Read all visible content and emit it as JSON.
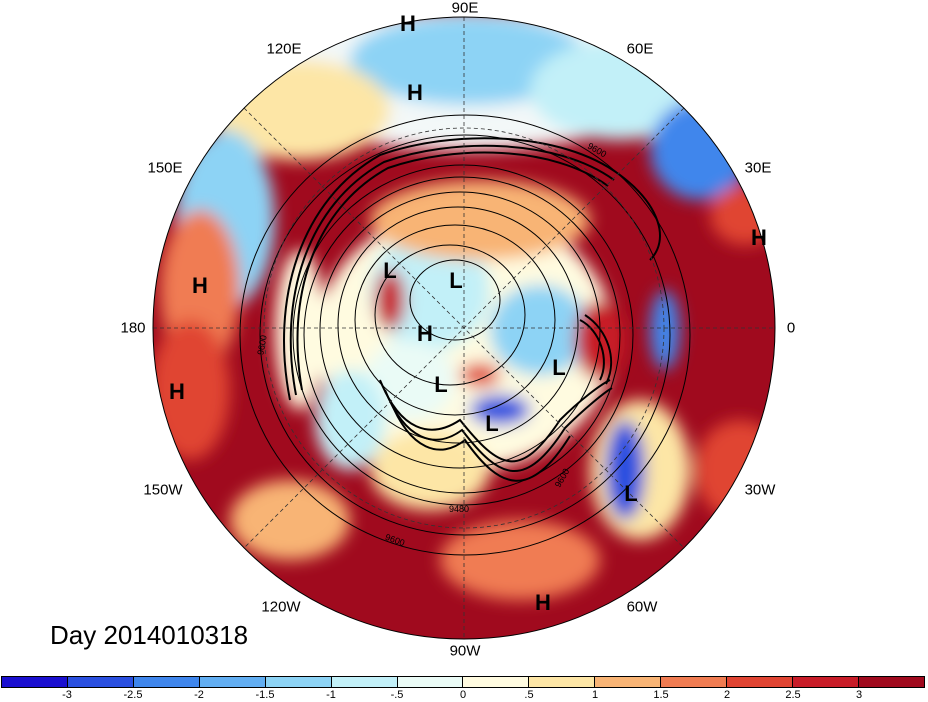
{
  "title": "Day 2014010318",
  "longitude_labels": [
    {
      "text": "90E",
      "key": "n"
    },
    {
      "text": "120E",
      "key": "nw1"
    },
    {
      "text": "60E",
      "key": "ne1"
    },
    {
      "text": "150E",
      "key": "nw2"
    },
    {
      "text": "30E",
      "key": "ne2"
    },
    {
      "text": "180",
      "key": "w"
    },
    {
      "text": "0",
      "key": "e"
    },
    {
      "text": "150W",
      "key": "sw2"
    },
    {
      "text": "30W",
      "key": "se2"
    },
    {
      "text": "120W",
      "key": "sw1"
    },
    {
      "text": "60W",
      "key": "se1"
    },
    {
      "text": "90W",
      "key": "s"
    }
  ],
  "pressure_centers": [
    {
      "text": "H",
      "key": "h1"
    },
    {
      "text": "H",
      "key": "h2"
    },
    {
      "text": "H",
      "key": "h3"
    },
    {
      "text": "H",
      "key": "h4"
    },
    {
      "text": "H",
      "key": "h5"
    },
    {
      "text": "H",
      "key": "h6"
    },
    {
      "text": "H",
      "key": "h7"
    },
    {
      "text": "L",
      "key": "l1"
    },
    {
      "text": "L",
      "key": "l2"
    },
    {
      "text": "L",
      "key": "l3"
    },
    {
      "text": "L",
      "key": "l4"
    },
    {
      "text": "L",
      "key": "l5"
    },
    {
      "text": "L",
      "key": "l6"
    }
  ],
  "contour_labels": [
    "9600",
    "9600",
    "9600",
    "9600",
    "9480"
  ],
  "colorbar": {
    "colors": [
      "#1a0fd0",
      "#2a4fe0",
      "#3f86ec",
      "#62aef2",
      "#8dd3f5",
      "#c2f0f8",
      "#eafbf6",
      "#fffbe0",
      "#fde6a6",
      "#f8b475",
      "#f07c52",
      "#e04432",
      "#c81c28",
      "#a00a1e"
    ],
    "tick_labels": [
      "-3",
      "-2.5",
      "-2",
      "-1.5",
      "-1",
      "-.5",
      "0",
      ".5",
      "1",
      "1.5",
      "2",
      "2.5",
      "3"
    ]
  }
}
